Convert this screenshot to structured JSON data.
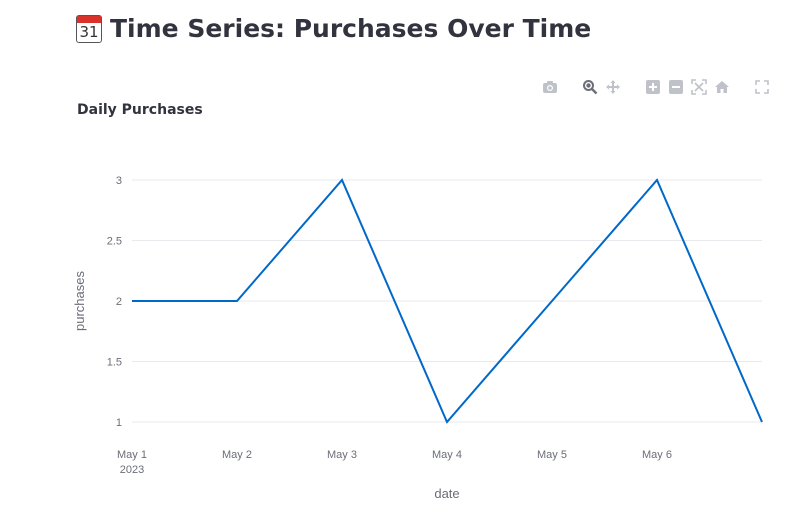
{
  "page": {
    "title": "Time Series: Purchases Over Time",
    "title_icon": "calendar-icon",
    "calendar_day": "31"
  },
  "modebar": {
    "icons": [
      "camera-icon",
      "zoom-icon",
      "pan-icon",
      "zoom-in-icon",
      "zoom-out-icon",
      "autoscale-icon",
      "home-icon",
      "fullscreen-icon"
    ]
  },
  "chart_data": {
    "type": "line",
    "title": "Daily Purchases",
    "xlabel": "date",
    "ylabel": "purchases",
    "x": [
      "2023-05-01",
      "2023-05-02",
      "2023-05-03",
      "2023-05-04",
      "2023-05-05",
      "2023-05-06",
      "2023-05-07"
    ],
    "series": [
      {
        "values": [
          2,
          2,
          3,
          1,
          2,
          3,
          1
        ],
        "color": "#0068c9"
      }
    ],
    "x_ticks": [
      "May 1",
      "May 2",
      "May 3",
      "May 4",
      "May 5",
      "May 6"
    ],
    "x_tick_year": "2023",
    "y_ticks": [
      "1",
      "1.5",
      "2",
      "2.5",
      "3"
    ],
    "ylim": [
      1,
      3
    ],
    "grid": true,
    "legend": false
  }
}
